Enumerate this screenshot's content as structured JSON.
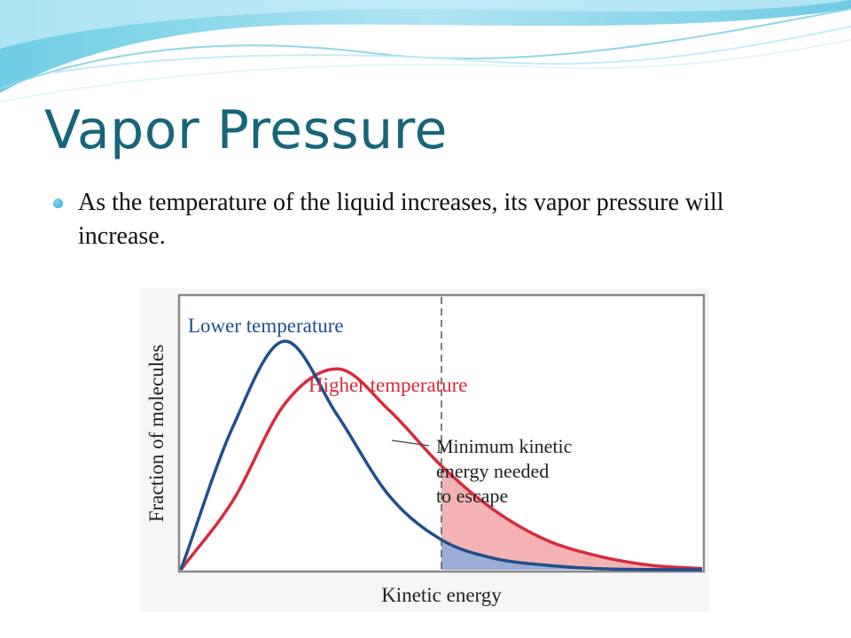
{
  "slide": {
    "title": "Vapor Pressure",
    "bullets": [
      "As the temperature of the liquid increases, its vapor pressure will increase."
    ]
  },
  "colors": {
    "title": "#17657a",
    "lower_curve": "#1f4f8c",
    "higher_curve": "#d62b3c",
    "lower_fill": "#9aaed8",
    "higher_fill": "#f3b3b3",
    "bullet": "#3cb0d2"
  },
  "chart_data": {
    "type": "line",
    "xlabel": "Kinetic energy",
    "ylabel": "Fraction of molecules",
    "x_ticks": "none",
    "y_ticks": "none",
    "grid": false,
    "x": [
      0,
      2,
      4,
      6,
      8,
      10,
      12,
      14,
      16,
      18,
      20
    ],
    "series": [
      {
        "name": "Lower temperature",
        "color": "#1f4f8c",
        "values": [
          0,
          0.62,
          0.99,
          0.67,
          0.32,
          0.13,
          0.05,
          0.02,
          0.005,
          0.001,
          0
        ]
      },
      {
        "name": "Higher temperature",
        "color": "#d62b3c",
        "values": [
          0,
          0.3,
          0.72,
          0.87,
          0.69,
          0.45,
          0.26,
          0.13,
          0.06,
          0.02,
          0.005
        ]
      }
    ],
    "threshold": {
      "x": 10,
      "label": [
        "Minimum kinetic",
        "energy needed",
        "to escape"
      ]
    },
    "shaded": "area under each curve to the right of the threshold"
  }
}
